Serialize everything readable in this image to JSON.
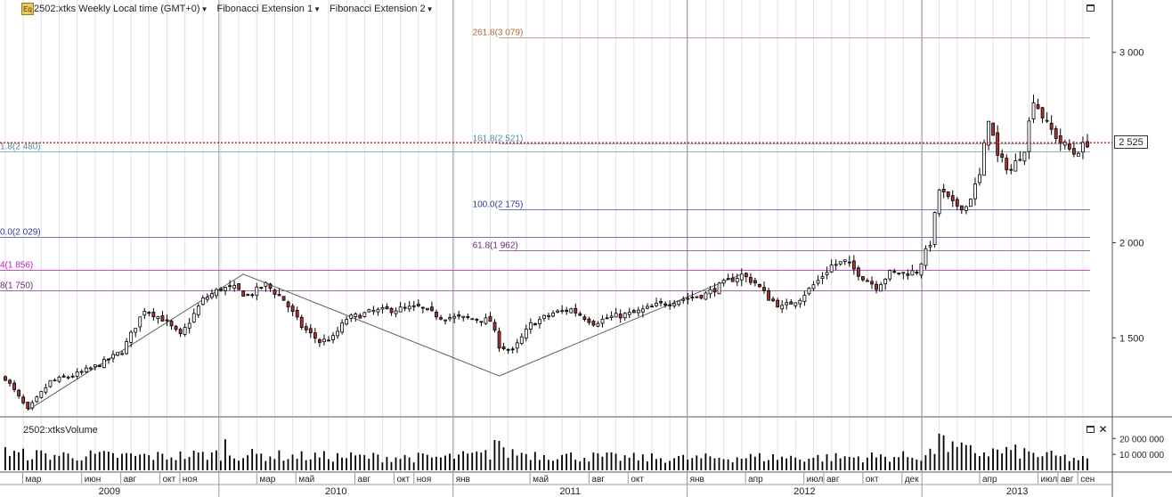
{
  "header": {
    "symbol_title": "2502:xtks Weekly Local time (GMT+0)",
    "indicator_1": "Fibonacci Extension 1",
    "indicator_2": "Fibonacci Extension 2",
    "icon": "eq-icon",
    "icon_text": "Eq"
  },
  "volume_panel": {
    "title": "2502:xtksVolume"
  },
  "last_price_label": "2 525",
  "chart_data": {
    "type": "candlestick",
    "price_axis": {
      "ticks": [
        {
          "value": 1500,
          "label": "1 500"
        },
        {
          "value": 2000,
          "label": "2 000"
        },
        {
          "value": 3000,
          "label": "3 000"
        }
      ],
      "ylim": [
        1090,
        3200
      ]
    },
    "volume_axis": {
      "ticks": [
        {
          "value": 10000000,
          "label": "10 000 000"
        },
        {
          "value": 20000000,
          "label": "20 000 000"
        }
      ],
      "ylim": [
        0,
        28000000
      ]
    },
    "x_axis": {
      "start": "2009-02-02",
      "end": "2013-09-16",
      "months": [
        {
          "date": "2009-03-01",
          "label": "мар"
        },
        {
          "date": "2009-06-01",
          "label": "июн"
        },
        {
          "date": "2009-08-01",
          "label": "авг"
        },
        {
          "date": "2009-10-01",
          "label": "окт"
        },
        {
          "date": "2009-11-01",
          "label": "ноя"
        },
        {
          "date": "2010-03-01",
          "label": "мар"
        },
        {
          "date": "2010-05-01",
          "label": "май"
        },
        {
          "date": "2010-08-01",
          "label": "авг"
        },
        {
          "date": "2010-10-01",
          "label": "окт"
        },
        {
          "date": "2010-11-01",
          "label": "ноя"
        },
        {
          "date": "2011-01-01",
          "label": "янв"
        },
        {
          "date": "2011-05-01",
          "label": "май"
        },
        {
          "date": "2011-08-01",
          "label": "авг"
        },
        {
          "date": "2011-10-01",
          "label": "окт"
        },
        {
          "date": "2012-01-01",
          "label": "янв"
        },
        {
          "date": "2012-04-01",
          "label": "апр"
        },
        {
          "date": "2012-07-01",
          "label": "июл"
        },
        {
          "date": "2012-08-01",
          "label": "авг"
        },
        {
          "date": "2012-10-01",
          "label": "окт"
        },
        {
          "date": "2012-12-01",
          "label": "дек"
        },
        {
          "date": "2013-04-01",
          "label": "апр"
        },
        {
          "date": "2013-07-01",
          "label": "июл"
        },
        {
          "date": "2013-08-01",
          "label": "авг"
        },
        {
          "date": "2013-09-01",
          "label": "сен"
        }
      ],
      "years": [
        {
          "start": "2009-01-01",
          "label": "2009"
        },
        {
          "start": "2010-01-01",
          "label": "2010"
        },
        {
          "start": "2011-01-01",
          "label": "2011"
        },
        {
          "start": "2012-01-01",
          "label": "2012"
        },
        {
          "start": "2013-01-01",
          "label": "2013"
        }
      ]
    },
    "price_path": [
      [
        "2009-02-02",
        1290
      ],
      [
        "2009-03-09",
        1120
      ],
      [
        "2009-04-13",
        1270
      ],
      [
        "2009-05-25",
        1310
      ],
      [
        "2009-06-29",
        1360
      ],
      [
        "2009-08-03",
        1430
      ],
      [
        "2009-09-07",
        1650
      ],
      [
        "2009-10-05",
        1600
      ],
      [
        "2009-11-02",
        1510
      ],
      [
        "2009-12-07",
        1700
      ],
      [
        "2010-01-04",
        1760
      ],
      [
        "2010-01-25",
        1760
      ],
      [
        "2010-02-15",
        1720
      ],
      [
        "2010-03-15",
        1780
      ],
      [
        "2010-04-12",
        1700
      ],
      [
        "2010-05-10",
        1560
      ],
      [
        "2010-06-07",
        1480
      ],
      [
        "2010-06-28",
        1500
      ],
      [
        "2010-07-19",
        1600
      ],
      [
        "2010-08-30",
        1640
      ],
      [
        "2010-10-04",
        1650
      ],
      [
        "2010-11-08",
        1660
      ],
      [
        "2010-12-13",
        1610
      ],
      [
        "2011-02-07",
        1600
      ],
      [
        "2011-02-28",
        1590
      ],
      [
        "2011-03-14",
        1460
      ],
      [
        "2011-04-04",
        1430
      ],
      [
        "2011-05-02",
        1570
      ],
      [
        "2011-06-06",
        1630
      ],
      [
        "2011-07-04",
        1650
      ],
      [
        "2011-08-08",
        1580
      ],
      [
        "2011-09-05",
        1610
      ],
      [
        "2011-10-10",
        1630
      ],
      [
        "2011-11-14",
        1670
      ],
      [
        "2011-12-19",
        1700
      ],
      [
        "2012-01-30",
        1730
      ],
      [
        "2012-03-05",
        1800
      ],
      [
        "2012-03-26",
        1830
      ],
      [
        "2012-04-16",
        1790
      ],
      [
        "2012-05-07",
        1710
      ],
      [
        "2012-05-28",
        1660
      ],
      [
        "2012-06-25",
        1710
      ],
      [
        "2012-07-23",
        1800
      ],
      [
        "2012-08-13",
        1880
      ],
      [
        "2012-09-03",
        1900
      ],
      [
        "2012-10-01",
        1820
      ],
      [
        "2012-10-22",
        1770
      ],
      [
        "2012-11-12",
        1840
      ],
      [
        "2012-12-03",
        1840
      ],
      [
        "2012-12-24",
        1850
      ],
      [
        "2013-01-14",
        2000
      ],
      [
        "2013-01-28",
        2280
      ],
      [
        "2013-02-18",
        2200
      ],
      [
        "2013-03-11",
        2190
      ],
      [
        "2013-04-01",
        2350
      ],
      [
        "2013-04-15",
        2660
      ],
      [
        "2013-04-29",
        2450
      ],
      [
        "2013-05-20",
        2380
      ],
      [
        "2013-06-10",
        2500
      ],
      [
        "2013-06-24",
        2760
      ],
      [
        "2013-07-15",
        2620
      ],
      [
        "2013-08-05",
        2530
      ],
      [
        "2013-08-26",
        2470
      ],
      [
        "2013-09-16",
        2525
      ]
    ],
    "volume_path": [
      [
        "2009-02-02",
        11000000
      ],
      [
        "2009-06-01",
        10000000
      ],
      [
        "2009-10-05",
        9500000
      ],
      [
        "2010-01-11",
        11000000
      ],
      [
        "2010-05-03",
        9500000
      ],
      [
        "2010-09-06",
        9000000
      ],
      [
        "2010-12-13",
        8500000
      ],
      [
        "2011-03-07",
        11000000
      ],
      [
        "2011-04-04",
        12000000
      ],
      [
        "2011-07-04",
        9500000
      ],
      [
        "2011-10-03",
        8500000
      ],
      [
        "2012-01-09",
        8000000
      ],
      [
        "2012-04-02",
        9000000
      ],
      [
        "2012-07-02",
        8500000
      ],
      [
        "2012-10-01",
        9000000
      ],
      [
        "2012-12-31",
        9500000
      ],
      [
        "2013-02-04",
        16000000
      ],
      [
        "2013-04-01",
        12000000
      ],
      [
        "2013-05-20",
        13000000
      ],
      [
        "2013-07-01",
        10500000
      ],
      [
        "2013-09-16",
        7000000
      ]
    ],
    "volume_spikes": [
      {
        "date": "2009-02-02",
        "value": 14500000
      },
      {
        "date": "2010-01-11",
        "value": 19500000
      },
      {
        "date": "2011-03-07",
        "value": 19000000
      },
      {
        "date": "2011-03-14",
        "value": 18500000
      },
      {
        "date": "2013-01-28",
        "value": 23000000
      },
      {
        "date": "2013-02-04",
        "value": 22000000
      }
    ],
    "zigzag": [
      [
        "2009-03-09",
        1120
      ],
      [
        "2010-02-08",
        1835
      ],
      [
        "2011-03-14",
        1300
      ],
      [
        "2012-03-26",
        1835
      ]
    ],
    "fib_levels": [
      {
        "set": 1,
        "label": "1.8(2 480)",
        "value": 2480,
        "color": "#88b8c4",
        "start": "left",
        "end": "2013-09-20"
      },
      {
        "set": 1,
        "label": "0.0(2 029)",
        "value": 2029,
        "color": "#6a7ac4",
        "start": "left",
        "end": "2013-09-20"
      },
      {
        "set": 1,
        "label": "4(1 856)",
        "value": 1856,
        "color": "#d048d0",
        "start": "left",
        "end": "2013-09-20"
      },
      {
        "set": 1,
        "label": "8(1 750)",
        "value": 1750,
        "color": "#a06aa8",
        "start": "left",
        "end": "2013-09-20"
      },
      {
        "set": 2,
        "label": "261.8(3 079)",
        "value": 3079,
        "color": "#c8a088",
        "start": "2011-03-14",
        "end": "2013-09-20"
      },
      {
        "set": 2,
        "label": "161.8(2 521)",
        "value": 2521,
        "color": "#88b8c4",
        "start": "2011-03-14",
        "end": "2013-09-20"
      },
      {
        "set": 2,
        "label": "100.0(2 175)",
        "value": 2175,
        "color": "#6a7ac4",
        "start": "2011-03-14",
        "end": "2013-09-20"
      },
      {
        "set": 2,
        "label": "61.8(1 962)",
        "value": 1962,
        "color": "#a06aa8",
        "start": "2011-03-14",
        "end": "2013-09-20"
      }
    ],
    "last_price": {
      "value": 2525,
      "color": "#cc2222"
    },
    "colors": {
      "up": "#ffffff",
      "down": "#b03030",
      "grid": "#cfcfcf",
      "volume": "#000000",
      "zigzag": "#606060"
    }
  }
}
